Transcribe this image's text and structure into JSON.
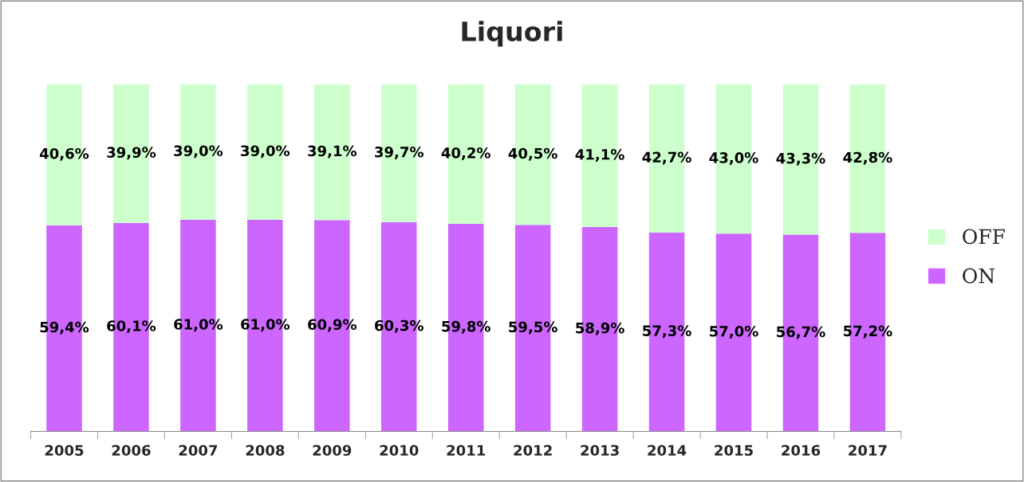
{
  "chart_data": {
    "type": "bar",
    "title": "Liquori",
    "stacked": true,
    "legend": "right",
    "grid": false,
    "categories": [
      "2005",
      "2006",
      "2007",
      "2008",
      "2009",
      "2010",
      "2011",
      "2012",
      "2013",
      "2014",
      "2015",
      "2016",
      "2017"
    ],
    "series": [
      {
        "name": "ON",
        "color": "#cc66ff",
        "values": [
          59.4,
          60.1,
          61.0,
          61.0,
          60.9,
          60.3,
          59.8,
          59.5,
          58.9,
          57.3,
          57.0,
          56.7,
          57.2
        ],
        "value_labels": [
          "59,4%",
          "60,1%",
          "61,0%",
          "61,0%",
          "60,9%",
          "60,3%",
          "59,8%",
          "59,5%",
          "58,9%",
          "57,3%",
          "57,0%",
          "56,7%",
          "57,2%"
        ]
      },
      {
        "name": "OFF",
        "color": "#ccffcc",
        "values": [
          40.6,
          39.9,
          39.0,
          39.0,
          39.1,
          39.7,
          40.2,
          40.5,
          41.1,
          42.7,
          43.0,
          43.3,
          42.8
        ],
        "value_labels": [
          "40,6%",
          "39,9%",
          "39,0%",
          "39,0%",
          "39,1%",
          "39,7%",
          "40,2%",
          "40,5%",
          "41,1%",
          "42,7%",
          "43,0%",
          "43,3%",
          "42,8%"
        ]
      }
    ]
  }
}
